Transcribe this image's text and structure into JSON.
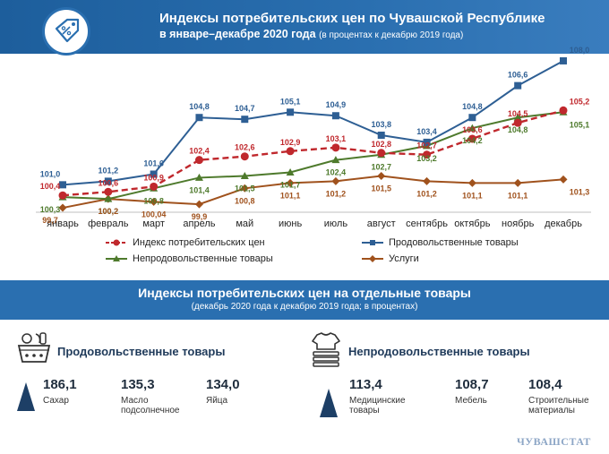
{
  "header": {
    "title": "Индексы потребительских цен по Чувашской Республике",
    "subtitle_main": "в январе–декабре 2020 года",
    "subtitle_note": "(в процентах к декабрю 2019 года)",
    "icon": "price-tag-percent-icon"
  },
  "chart_data": {
    "type": "line",
    "categories": [
      "январь",
      "февраль",
      "март",
      "апрель",
      "май",
      "июнь",
      "июль",
      "август",
      "сентябрь",
      "октябрь",
      "ноябрь",
      "декабрь"
    ],
    "series": [
      {
        "name": "Индекс потребительских цен",
        "color": "#c0282d",
        "style": "dashed",
        "marker": "circle",
        "values": [
          100.4,
          100.6,
          100.9,
          102.4,
          102.6,
          102.9,
          103.1,
          102.8,
          102.7,
          103.6,
          104.5,
          105.2
        ],
        "labels": [
          "100,4",
          "100,6",
          "100,9",
          "102,4",
          "102,6",
          "102,9",
          "103,1",
          "102,8",
          "102,7",
          "103,6",
          "104,5",
          "105,2"
        ]
      },
      {
        "name": "Продовольственные товары",
        "color": "#2e5f94",
        "style": "solid",
        "marker": "square",
        "values": [
          101.0,
          101.2,
          101.6,
          104.8,
          104.7,
          105.1,
          104.9,
          103.8,
          103.4,
          104.8,
          106.6,
          108.0
        ],
        "labels": [
          "101,0",
          "101,2",
          "101,6",
          "104,8",
          "104,7",
          "105,1",
          "104,9",
          "103,8",
          "103,4",
          "104,8",
          "106,6",
          "108,0"
        ]
      },
      {
        "name": "Непродовольственные товары",
        "color": "#4e7a2c",
        "style": "solid",
        "marker": "triangle",
        "values": [
          100.3,
          100.2,
          100.8,
          101.4,
          101.5,
          101.7,
          102.4,
          102.7,
          103.2,
          104.2,
          104.8,
          105.1
        ],
        "labels": [
          "100,3",
          "100,2",
          "100,8",
          "101,4",
          "101,5",
          "101,7",
          "102,4",
          "102,7",
          "103,2",
          "104,2",
          "104,8",
          "105,1"
        ]
      },
      {
        "name": "Услуги",
        "color": "#a0521d",
        "style": "solid",
        "marker": "diamond",
        "values": [
          99.7,
          100.2,
          100.04,
          99.9,
          100.8,
          101.1,
          101.2,
          101.5,
          101.2,
          101.1,
          101.1,
          101.3
        ],
        "labels": [
          "99,7",
          "100,2",
          "100,04",
          "99,9",
          "100,8",
          "101,1",
          "101,2",
          "101,5",
          "101,2",
          "101,1",
          "101,1",
          "101,3"
        ]
      }
    ],
    "ylim": [
      99.5,
      108.2
    ],
    "grid": false
  },
  "band": {
    "title": "Индексы потребительских цен на отдельные товары",
    "subtitle": "(декабрь 2020 года к декабрю 2019 года; в процентах)"
  },
  "food": {
    "heading": "Продовольственные товары",
    "items": [
      {
        "value": "186,1",
        "label": "Сахар"
      },
      {
        "value": "135,3",
        "label": "Масло подсолнечное"
      },
      {
        "value": "134,0",
        "label": "Яйца"
      }
    ]
  },
  "nonfood": {
    "heading": "Непродовольственные товары",
    "items": [
      {
        "value": "113,4",
        "label": "Медицинские товары"
      },
      {
        "value": "108,7",
        "label": "Мебель"
      },
      {
        "value": "108,4",
        "label": "Строительные материалы"
      }
    ]
  },
  "stamp": "ЧУВАШСТАТ"
}
